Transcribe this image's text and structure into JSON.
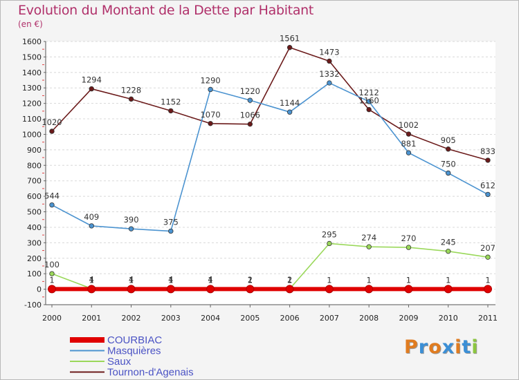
{
  "title": "Evolution du Montant de la Dette par Habitant",
  "subtitle": "(en €)",
  "logo": {
    "text": "Proxiti",
    "colors": [
      "#e07c20",
      "#3b8fd6",
      "#e07c20",
      "#3b8fd6",
      "#e07c20",
      "#3b8fd6",
      "#8cc63f"
    ]
  },
  "chart_data": {
    "type": "line",
    "title": "Evolution du Montant de la Dette par Habitant",
    "ylabel": "(en €)",
    "xlabel": "",
    "x": [
      "2000",
      "2001",
      "2002",
      "2003",
      "2004",
      "2005",
      "2006",
      "2007",
      "2008",
      "2009",
      "2010",
      "2011"
    ],
    "yticks": [
      "-100",
      "0",
      "100",
      "200",
      "300",
      "400",
      "500",
      "600",
      "700",
      "800",
      "900",
      "1000",
      "1100",
      "1200",
      "1300",
      "1400",
      "1500",
      "1600"
    ],
    "ylim": [
      -100,
      1600
    ],
    "grid": "horizontal dashed",
    "legend_position": "bottom-left",
    "series": [
      {
        "name": "Tournon-d'Agenais",
        "color": "#6b1a1a",
        "values": [
          1020,
          1294,
          1228,
          1152,
          1070,
          1066,
          1561,
          1473,
          1160,
          1002,
          905,
          833
        ],
        "labels": [
          "1020",
          "1294",
          "1228",
          "1152",
          "1070",
          "1066",
          "1561",
          "1473",
          "1160",
          "1002",
          "905",
          "833"
        ]
      },
      {
        "name": "Masquières",
        "color": "#4b93d0",
        "values": [
          544,
          409,
          390,
          375,
          1290,
          1220,
          1144,
          1332,
          1212,
          881,
          750,
          612
        ],
        "labels": [
          "544",
          "409",
          "390",
          "375",
          "1290",
          "1220",
          "1144",
          "1332",
          "1212",
          "881",
          "750",
          "612"
        ]
      },
      {
        "name": "Saux",
        "color": "#9ad85a",
        "values": [
          100,
          4,
          4,
          4,
          4,
          2,
          2,
          295,
          274,
          270,
          245,
          207
        ],
        "labels": [
          "100",
          "4",
          "4",
          "4",
          "4",
          "2",
          "2",
          "295",
          "274",
          "270",
          "245",
          "207"
        ]
      },
      {
        "name": "COURBIAC",
        "color": "#e00000",
        "values": [
          1,
          1,
          1,
          1,
          1,
          1,
          1,
          1,
          1,
          1,
          1,
          1
        ],
        "labels": [
          "1",
          "1",
          "1",
          "1",
          "1",
          "1",
          "1",
          "1",
          "1",
          "1",
          "1",
          "1"
        ]
      }
    ],
    "legend": [
      "COURBIAC",
      "Masquières",
      "Saux",
      "Tournon-d'Agenais"
    ]
  }
}
